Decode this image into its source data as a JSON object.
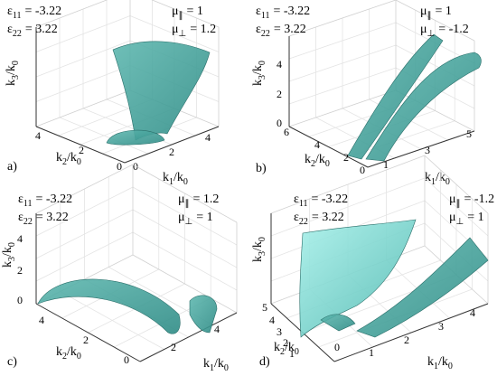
{
  "panels": [
    {
      "label": "a)",
      "params": [
        {
          "symbol": "ε",
          "sub": "11",
          "value": "= -3.22"
        },
        {
          "symbol": "ε",
          "sub": "22",
          "value": "= 3.22"
        },
        {
          "symbol": "μ",
          "sub": "∥",
          "value": "= 1"
        },
        {
          "symbol": "μ",
          "sub": "⊥",
          "value": "= 1.2"
        }
      ],
      "axes": {
        "z": {
          "label": [
            "k",
            "3",
            "/k",
            "0"
          ],
          "ticks": []
        },
        "y": {
          "label": [
            "k",
            "2",
            "/k",
            "0"
          ],
          "ticks": [
            4,
            2,
            0
          ]
        },
        "x": {
          "label": [
            "k",
            "1",
            "/k",
            "0"
          ],
          "ticks": [
            0,
            2,
            4
          ]
        }
      }
    },
    {
      "label": "b)",
      "params": [
        {
          "symbol": "ε",
          "sub": "11",
          "value": "= -3.22"
        },
        {
          "symbol": "ε",
          "sub": "22",
          "value": "= 3.22"
        },
        {
          "symbol": "μ",
          "sub": "∥",
          "value": "= 1"
        },
        {
          "symbol": "μ",
          "sub": "⊥",
          "value": "= -1.2"
        }
      ],
      "axes": {
        "z": {
          "label": [
            "k",
            "3",
            "/k",
            "0"
          ],
          "ticks": [
            4,
            2,
            0
          ]
        },
        "y": {
          "label": [
            "k",
            "2",
            "/k",
            "0"
          ],
          "ticks": [
            6,
            4,
            2,
            0
          ]
        },
        "x": {
          "label": [
            "k",
            "1",
            "/k",
            "0"
          ],
          "ticks": [
            1,
            3,
            5
          ]
        }
      }
    },
    {
      "label": "c)",
      "params": [
        {
          "symbol": "ε",
          "sub": "11",
          "value": "= -3.22"
        },
        {
          "symbol": "ε",
          "sub": "22",
          "value": "= 3.22"
        },
        {
          "symbol": "μ",
          "sub": "∥",
          "value": "= 1.2"
        },
        {
          "symbol": "μ",
          "sub": "⊥",
          "value": "= 1"
        }
      ],
      "axes": {
        "z": {
          "label": [
            "k",
            "3",
            "/k",
            "0"
          ],
          "ticks": [
            4,
            2,
            0
          ]
        },
        "y": {
          "label": [
            "k",
            "2",
            "/k",
            "0"
          ],
          "ticks": [
            4,
            2,
            0
          ]
        },
        "x": {
          "label": [
            "k",
            "1",
            "/k",
            "0"
          ],
          "ticks": [
            2,
            4
          ]
        }
      }
    },
    {
      "label": "d)",
      "params": [
        {
          "symbol": "ε",
          "sub": "11",
          "value": "= -3.22"
        },
        {
          "symbol": "ε",
          "sub": "22",
          "value": "= 3.22"
        },
        {
          "symbol": "μ",
          "sub": "∥",
          "value": "= -1.2"
        },
        {
          "symbol": "μ",
          "sub": "⊥",
          "value": "= 1"
        }
      ],
      "axes": {
        "z": {
          "label": [
            "k",
            "3",
            "/k",
            "0"
          ],
          "ticks": []
        },
        "y": {
          "label": [
            "k",
            "2",
            "/k",
            "0"
          ],
          "ticks": [
            5,
            4,
            3,
            2,
            1
          ]
        },
        "x": {
          "label": [
            "k",
            "1",
            "/k",
            "0"
          ],
          "ticks": [
            0,
            1,
            2,
            3,
            4
          ]
        }
      }
    }
  ]
}
